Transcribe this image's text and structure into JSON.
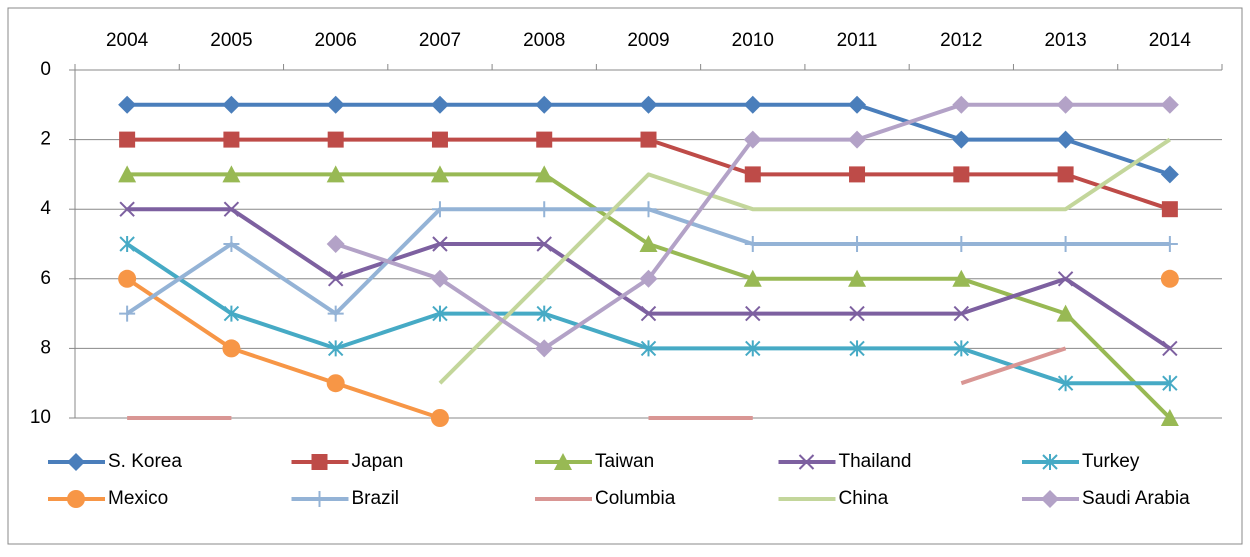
{
  "chart_data": {
    "type": "line",
    "categories": [
      "2004",
      "2005",
      "2006",
      "2007",
      "2008",
      "2009",
      "2010",
      "2011",
      "2012",
      "2013",
      "2014"
    ],
    "ylim": [
      10,
      0
    ],
    "yticks": [
      0,
      2,
      4,
      6,
      8,
      10
    ],
    "grid": true,
    "legend": "bottom",
    "series": [
      {
        "name": "S. Korea",
        "color": "#4a7ebb",
        "marker": "diamond",
        "values": [
          1,
          1,
          1,
          1,
          1,
          1,
          1,
          1,
          2,
          2,
          3
        ]
      },
      {
        "name": "Japan",
        "color": "#be4b48",
        "marker": "square",
        "values": [
          2,
          2,
          2,
          2,
          2,
          2,
          3,
          3,
          3,
          3,
          4
        ]
      },
      {
        "name": "Taiwan",
        "color": "#98b954",
        "marker": "triangle",
        "values": [
          3,
          3,
          3,
          3,
          3,
          5,
          6,
          6,
          6,
          7,
          10
        ]
      },
      {
        "name": "Thailand",
        "color": "#7d60a0",
        "marker": "x",
        "values": [
          4,
          4,
          6,
          5,
          5,
          7,
          7,
          7,
          7,
          6,
          8
        ]
      },
      {
        "name": "Turkey",
        "color": "#46aac5",
        "marker": "star",
        "values": [
          5,
          7,
          8,
          7,
          7,
          8,
          8,
          8,
          8,
          9,
          9
        ]
      },
      {
        "name": "Mexico",
        "color": "#f79646",
        "marker": "circle",
        "values": [
          6,
          8,
          9,
          10,
          null,
          null,
          null,
          null,
          null,
          null,
          6
        ]
      },
      {
        "name": "Brazil",
        "color": "#94b3d6",
        "marker": "plus",
        "values": [
          7,
          5,
          7,
          4,
          4,
          4,
          5,
          5,
          5,
          5,
          5
        ]
      },
      {
        "name": "Columbia",
        "color": "#d99694",
        "marker": "none",
        "values": [
          10,
          10,
          null,
          null,
          null,
          10,
          10,
          null,
          9,
          8,
          null
        ]
      },
      {
        "name": "China",
        "color": "#c3d69b",
        "marker": "none",
        "values": [
          null,
          null,
          null,
          9,
          6,
          3,
          4,
          4,
          4,
          4,
          2
        ]
      },
      {
        "name": "Saudi Arabia",
        "color": "#b3a2c7",
        "marker": "diamond",
        "values": [
          null,
          null,
          5,
          6,
          8,
          6,
          2,
          2,
          1,
          1,
          1
        ]
      }
    ]
  }
}
